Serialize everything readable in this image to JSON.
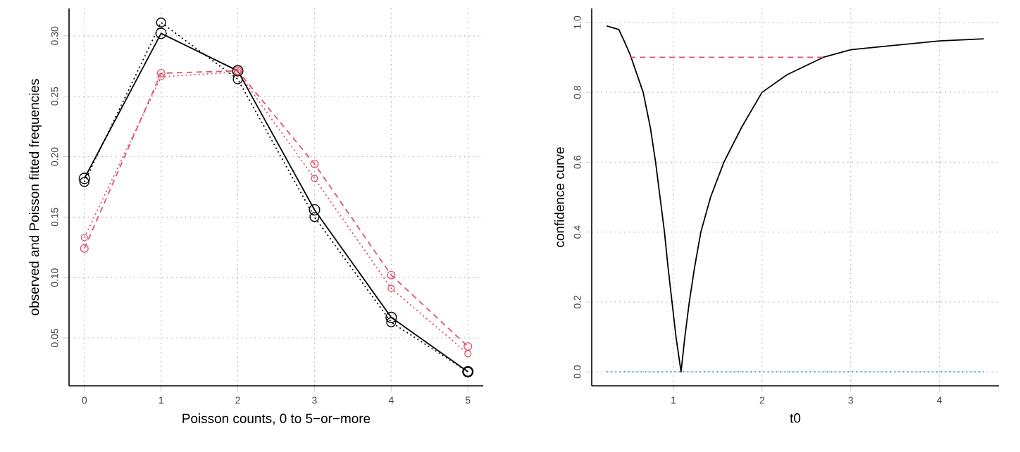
{
  "chart_data": [
    {
      "type": "line",
      "xlabel": "Poisson counts, 0 to 5−or−more",
      "ylabel": "observed and Poisson fitted frequencies",
      "x": [
        0,
        1,
        2,
        3,
        4,
        5
      ],
      "xlim": [
        -0.2,
        5.2
      ],
      "xticks": [
        0,
        1,
        2,
        3,
        4,
        5
      ],
      "ylim": [
        0.0104,
        0.3226
      ],
      "yticks": [
        {
          "value": 0.05,
          "label": "0.05"
        },
        {
          "value": 0.1,
          "label": "0.10"
        },
        {
          "value": 0.15,
          "label": "0.15"
        },
        {
          "value": 0.2,
          "label": "0.20"
        },
        {
          "value": 0.25,
          "label": "0.25"
        },
        {
          "value": 0.3,
          "label": "0.30"
        }
      ],
      "grid": true,
      "marker": "circle",
      "series": [
        {
          "color": "#000000",
          "line_style": "solid",
          "values": [
            0.182,
            0.302,
            0.271,
            0.156,
            0.067,
            0.022
          ]
        },
        {
          "color": "#000000",
          "line_style": "dotted",
          "values": [
            0.179,
            0.311,
            0.264,
            0.15,
            0.063,
            0.022
          ]
        },
        {
          "color": "#df536b",
          "line_style": "dashed",
          "values": [
            0.124,
            0.269,
            0.271,
            0.194,
            0.102,
            0.043
          ]
        },
        {
          "color": "#df536b",
          "line_style": "dotted",
          "values": [
            0.133,
            0.266,
            0.27,
            0.182,
            0.091,
            0.037
          ]
        }
      ]
    },
    {
      "type": "line",
      "xlabel": "t0",
      "ylabel": "confidence curve",
      "xlim": [
        0.08,
        4.67
      ],
      "xticks": [
        1,
        2,
        3,
        4
      ],
      "ylim": [
        -0.04,
        1.04
      ],
      "yticks": [
        {
          "value": 0,
          "label": "0.0"
        },
        {
          "value": 0.2,
          "label": "0.2"
        },
        {
          "value": 0.4,
          "label": "0.4"
        },
        {
          "value": 0.6,
          "label": "0.6"
        },
        {
          "value": 0.8,
          "label": "0.8"
        },
        {
          "value": 1,
          "label": "1.0"
        }
      ],
      "grid": true,
      "series": [
        {
          "color": "#000000",
          "line_style": "solid",
          "x": [
            0.25,
            0.385,
            0.44,
            0.51,
            0.66,
            0.74,
            0.8,
            0.85,
            0.9,
            0.94,
            0.985,
            1.03,
            1.087,
            1.13,
            1.18,
            1.24,
            1.31,
            1.42,
            1.57,
            1.77,
            2.0,
            2.28,
            2.69,
            3.0,
            4.0,
            4.5
          ],
          "values": [
            0.99,
            0.98,
            0.95,
            0.91,
            0.8,
            0.7,
            0.6,
            0.5,
            0.4,
            0.3,
            0.2,
            0.1,
            0.0,
            0.1,
            0.2,
            0.3,
            0.4,
            0.5,
            0.6,
            0.7,
            0.8,
            0.85,
            0.9,
            0.922,
            0.947,
            0.953
          ]
        },
        {
          "color": "#df536b",
          "line_style": "dashed",
          "x": [
            0.51,
            2.69
          ],
          "values": [
            0.9,
            0.9
          ]
        },
        {
          "color": "#2297e6",
          "line_style": "dotted",
          "x": [
            0.25,
            4.5
          ],
          "values": [
            0,
            0
          ]
        }
      ]
    }
  ]
}
